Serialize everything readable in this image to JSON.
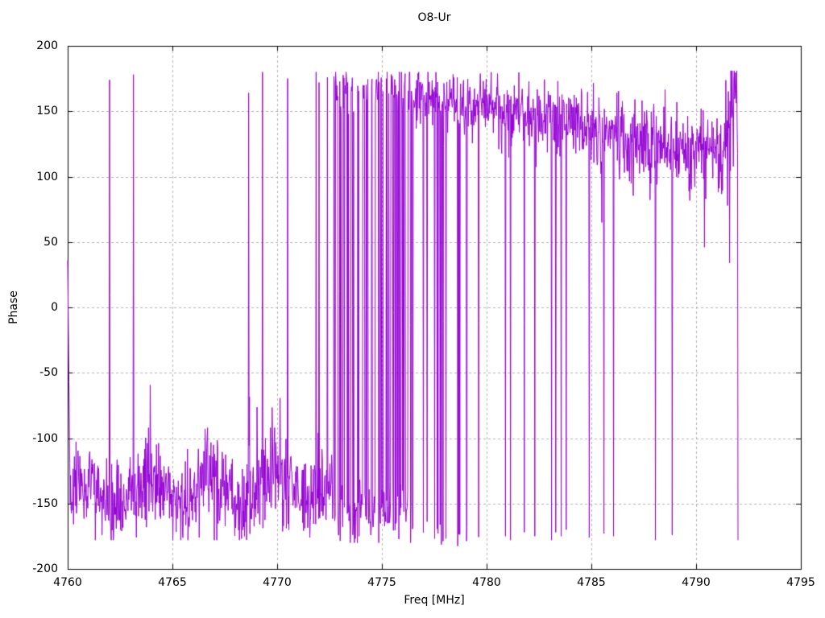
{
  "chart_data": {
    "type": "line",
    "title": "O8-Ur",
    "xlabel": "Freq [MHz]",
    "ylabel": "Phase",
    "xlim": [
      4760,
      4795
    ],
    "ylim": [
      -200,
      200
    ],
    "x_ticks": [
      4760,
      4765,
      4770,
      4775,
      4780,
      4785,
      4790,
      4795
    ],
    "y_ticks": [
      -200,
      -150,
      -100,
      -50,
      0,
      50,
      100,
      150,
      200
    ],
    "grid": true,
    "grid_color": "#b0b0b0",
    "border_color": "#000000",
    "line_color": "#9400d3",
    "legend": "none",
    "data_x_start": 4760.0,
    "data_x_end": 4792.0,
    "description": "Noisy interferometer phase vs frequency; phase wraps between -180 and +180. Low band near -140 deg from 4760-4772, dense wrapping 4772.7-4776.4, high band near +160 deg 4776-4786 decaying to ~+115 deg by 4791, trace ends at 4792 with wrap to -178.",
    "series_def": {
      "seed": 1337,
      "step": 0.02,
      "segments": [
        {
          "mode": "ramp",
          "x0": 4760.0,
          "x1": 4760.14,
          "from": 36,
          "to": -150
        },
        {
          "mode": "noise",
          "x0": 4760.14,
          "x1": 4772.65,
          "mean": -140,
          "std": 17,
          "min": -178,
          "max": -92,
          "mod_amp": 10,
          "mod_period": 3.0,
          "upspike_p": 0.012,
          "upspike_lo": -78,
          "upspike_hi": -50
        },
        {
          "mode": "alt",
          "x0": 4772.65,
          "x1": 4776.4,
          "p_switch": 0.35,
          "top_mean": 166,
          "top_std": 9,
          "top_min": 140,
          "top_max": 180,
          "bot_mean": -158,
          "bot_std": 13,
          "bot_min": -180,
          "bot_max": -128
        },
        {
          "mode": "band",
          "x0": 4776.4,
          "x1": 4777.6,
          "mean0": 163,
          "mean1": 160,
          "std": 10,
          "min": 128,
          "max": 180,
          "drop_p": 0.1,
          "drop_val": -172
        },
        {
          "mode": "band",
          "x0": 4777.6,
          "x1": 4780.3,
          "mean0": 160,
          "mean1": 152,
          "std": 11,
          "min": 115,
          "max": 180,
          "drop_p": 0.07,
          "drop_val": -174
        },
        {
          "mode": "band",
          "x0": 4780.3,
          "x1": 4786.3,
          "mean0": 152,
          "mean1": 134,
          "std": 13,
          "min": 95,
          "max": 180,
          "drop_p": 0.0,
          "drop_val": -175
        },
        {
          "mode": "band",
          "x0": 4786.3,
          "x1": 4791.3,
          "mean0": 132,
          "mean1": 113,
          "std": 16,
          "min": 70,
          "max": 172,
          "drop_p": 0.0,
          "drop_val": -175
        },
        {
          "mode": "band",
          "x0": 4791.3,
          "x1": 4792.0,
          "mean0": 120,
          "mean1": 172,
          "std": 28,
          "min": 30,
          "max": 181,
          "drop_p": 0.0,
          "drop_val": -175
        }
      ],
      "events": [
        {
          "x": 4762.0,
          "y": 174
        },
        {
          "x": 4763.15,
          "y": 178
        },
        {
          "x": 4768.65,
          "y": 164
        },
        {
          "x": 4769.3,
          "y": 180
        },
        {
          "x": 4770.5,
          "y": 175
        },
        {
          "x": 4771.85,
          "y": 180
        },
        {
          "x": 4772.0,
          "y": 172
        },
        {
          "x": 4772.4,
          "y": 176
        },
        {
          "x": 4780.9,
          "y": -175
        },
        {
          "x": 4781.15,
          "y": -178
        },
        {
          "x": 4781.8,
          "y": -172
        },
        {
          "x": 4782.3,
          "y": -175
        },
        {
          "x": 4783.1,
          "y": -178
        },
        {
          "x": 4783.3,
          "y": -172
        },
        {
          "x": 4783.55,
          "y": -175
        },
        {
          "x": 4783.8,
          "y": -170
        },
        {
          "x": 4784.9,
          "y": -176
        },
        {
          "x": 4785.5,
          "y": 65
        },
        {
          "x": 4785.6,
          "y": -173
        },
        {
          "x": 4786.05,
          "y": -175
        },
        {
          "x": 4788.05,
          "y": -178
        },
        {
          "x": 4788.85,
          "y": -174
        },
        {
          "x": 4790.4,
          "y": 46
        },
        {
          "x": 4791.6,
          "y": 34
        }
      ],
      "final_point": {
        "x": 4792.0,
        "y": -178
      }
    }
  }
}
